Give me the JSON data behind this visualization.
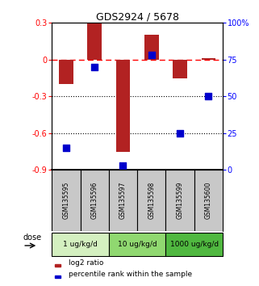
{
  "title": "GDS2924 / 5678",
  "samples": [
    "GSM135595",
    "GSM135596",
    "GSM135597",
    "GSM135598",
    "GSM135599",
    "GSM135600"
  ],
  "log2_ratio": [
    -0.2,
    0.3,
    -0.75,
    0.2,
    -0.15,
    0.01
  ],
  "percentile_rank": [
    15,
    70,
    3,
    78,
    25,
    50
  ],
  "ylim_left": [
    -0.9,
    0.3
  ],
  "ylim_right": [
    0,
    100
  ],
  "yticks_left": [
    -0.9,
    -0.6,
    -0.3,
    0.0,
    0.3
  ],
  "ytick_labels_left": [
    "-0.9",
    "-0.6",
    "-0.3",
    "0",
    "0.3"
  ],
  "yticks_right": [
    0,
    25,
    50,
    75,
    100
  ],
  "ytick_labels_right": [
    "0",
    "25",
    "50",
    "75",
    "100%"
  ],
  "hlines": [
    -0.3,
    -0.6
  ],
  "zero_line": 0.0,
  "bar_color": "#b22222",
  "dot_color": "#0000cc",
  "dose_groups": [
    {
      "label": "1 ug/kg/d",
      "samples": [
        0,
        1
      ],
      "color": "#d4f0c0"
    },
    {
      "label": "10 ug/kg/d",
      "samples": [
        2,
        3
      ],
      "color": "#90d870"
    },
    {
      "label": "1000 ug/kg/d",
      "samples": [
        4,
        5
      ],
      "color": "#50b840"
    }
  ],
  "dose_label": "dose",
  "legend_red": "log2 ratio",
  "legend_blue": "percentile rank within the sample",
  "bg_color": "#ffffff",
  "sample_bg_color": "#c8c8c8"
}
